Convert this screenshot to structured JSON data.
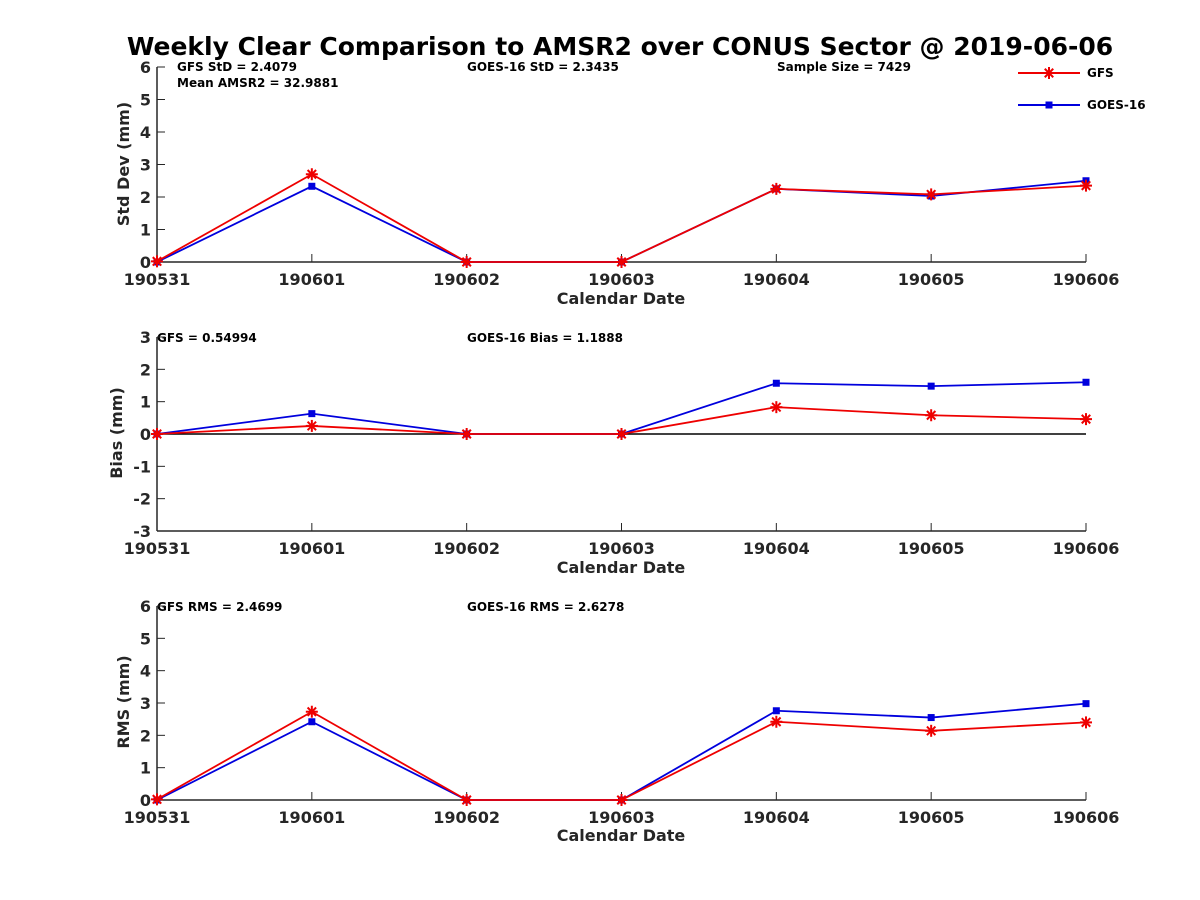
{
  "figure": {
    "title": "Weekly Clear Comparison to AMSR2 over CONUS Sector @ 2019-06-06"
  },
  "legend": {
    "entries": [
      {
        "label": "GFS",
        "color": "#ee0000",
        "marker": "asterisk"
      },
      {
        "label": "GOES-16",
        "color": "#0000dd",
        "marker": "square"
      }
    ]
  },
  "chart_data": [
    {
      "type": "line",
      "categories": [
        "190531",
        "190601",
        "190602",
        "190603",
        "190604",
        "190605",
        "190606"
      ],
      "xlabel": "Calendar Date",
      "ylabel": "Std Dev (mm)",
      "ylim": [
        0,
        6
      ],
      "yticks": [
        "0",
        "1",
        "2",
        "3",
        "4",
        "5",
        "6"
      ],
      "zero_line": false,
      "annotations": [
        "GFS StD = 2.4079",
        "Mean AMSR2 = 32.9881",
        "GOES-16 StD = 2.3435",
        "Sample Size = 7429"
      ],
      "series": [
        {
          "name": "GFS",
          "values": [
            0.02,
            2.7,
            0.0,
            0.0,
            2.25,
            2.08,
            2.35
          ]
        },
        {
          "name": "GOES-16",
          "values": [
            0.0,
            2.33,
            0.0,
            0.0,
            2.25,
            2.03,
            2.5
          ]
        }
      ]
    },
    {
      "type": "line",
      "categories": [
        "190531",
        "190601",
        "190602",
        "190603",
        "190604",
        "190605",
        "190606"
      ],
      "xlabel": "Calendar Date",
      "ylabel": "Bias (mm)",
      "ylim": [
        -3,
        3
      ],
      "yticks": [
        "-3",
        "-2",
        "-1",
        "0",
        "1",
        "2",
        "3"
      ],
      "zero_line": true,
      "annotations": [
        "GFS = 0.54994",
        "GOES-16 Bias  = 1.1888"
      ],
      "series": [
        {
          "name": "GFS",
          "values": [
            0.0,
            0.25,
            0.0,
            0.0,
            0.83,
            0.58,
            0.46
          ]
        },
        {
          "name": "GOES-16",
          "values": [
            0.0,
            0.63,
            0.0,
            0.0,
            1.57,
            1.48,
            1.6
          ]
        }
      ]
    },
    {
      "type": "line",
      "categories": [
        "190531",
        "190601",
        "190602",
        "190603",
        "190604",
        "190605",
        "190606"
      ],
      "xlabel": "Calendar Date",
      "ylabel": "RMS (mm)",
      "ylim": [
        0,
        6
      ],
      "yticks": [
        "0",
        "1",
        "2",
        "3",
        "4",
        "5",
        "6"
      ],
      "zero_line": false,
      "annotations": [
        "GFS RMS = 2.4699",
        "GOES-16 RMS = 2.6278"
      ],
      "series": [
        {
          "name": "GFS",
          "values": [
            0.02,
            2.73,
            0.0,
            0.0,
            2.42,
            2.14,
            2.4
          ]
        },
        {
          "name": "GOES-16",
          "values": [
            0.0,
            2.42,
            0.0,
            0.0,
            2.76,
            2.55,
            2.98
          ]
        }
      ]
    }
  ]
}
